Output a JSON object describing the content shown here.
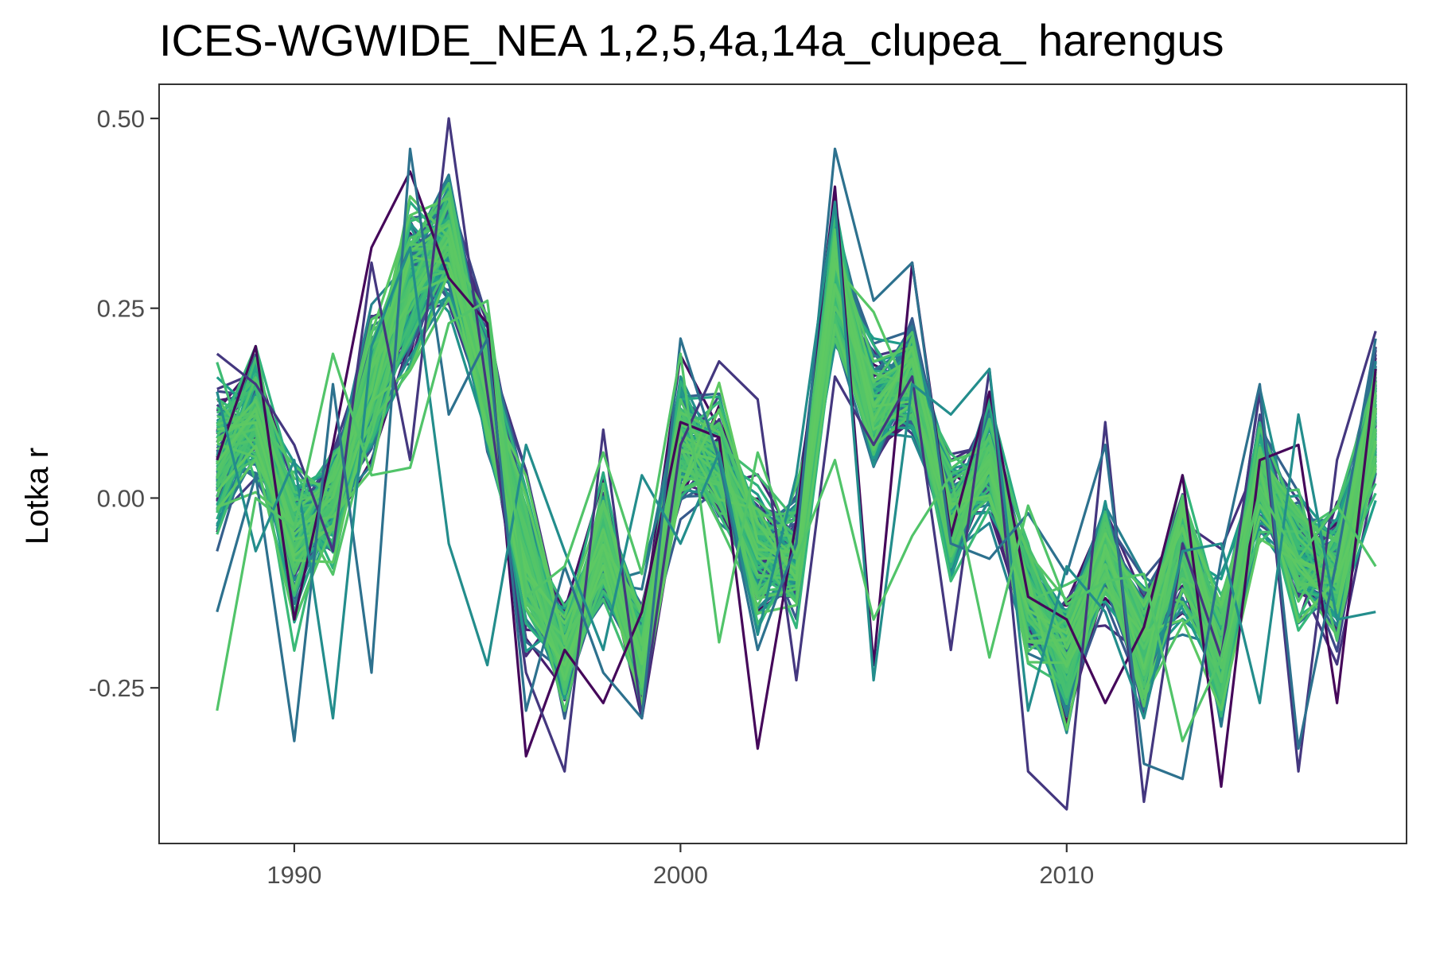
{
  "chart_data": {
    "type": "line",
    "title": "ICES-WGWIDE_NEA 1,2,5,4a,14a_clupea_ harengus",
    "xlabel": "",
    "ylabel": "Lotka r",
    "xlim": [
      1986.5,
      2018.8
    ],
    "ylim": [
      -0.455,
      0.545
    ],
    "x_ticks": [
      1990,
      2000,
      2010
    ],
    "x_tick_labels": [
      "1990",
      "2000",
      "2010"
    ],
    "y_ticks": [
      0.5,
      0.25,
      0.0,
      -0.25
    ],
    "y_tick_labels": [
      "0.50",
      "0.25",
      "0.00",
      "-0.25"
    ],
    "grid": false,
    "legend": "none",
    "palette": [
      "#440154",
      "#482878",
      "#3e4a89",
      "#31688e",
      "#26828e",
      "#1f9e89",
      "#35b779",
      "#4ac16d",
      "#5ec962"
    ],
    "ensemble_size": 150,
    "x": [
      1988,
      1989,
      1990,
      1991,
      1992,
      1993,
      1994,
      1995,
      1996,
      1997,
      1998,
      1999,
      2000,
      2001,
      2002,
      2003,
      2004,
      2005,
      2006,
      2007,
      2008,
      2009,
      2010,
      2011,
      2012,
      2013,
      2014,
      2015,
      2016,
      2017,
      2018
    ],
    "central_y": [
      0.05,
      0.11,
      -0.05,
      0.0,
      0.14,
      0.28,
      0.34,
      0.14,
      -0.07,
      -0.21,
      -0.06,
      -0.2,
      0.07,
      0.05,
      -0.07,
      -0.08,
      0.29,
      0.12,
      0.16,
      -0.03,
      0.05,
      -0.13,
      -0.21,
      -0.07,
      -0.2,
      -0.07,
      -0.2,
      0.03,
      -0.08,
      -0.1,
      0.1
    ],
    "spread": [
      0.08,
      0.07,
      0.08,
      0.06,
      0.08,
      0.08,
      0.07,
      0.07,
      0.08,
      0.06,
      0.06,
      0.06,
      0.07,
      0.06,
      0.07,
      0.06,
      0.07,
      0.07,
      0.06,
      0.06,
      0.06,
      0.06,
      0.06,
      0.06,
      0.07,
      0.07,
      0.07,
      0.06,
      0.06,
      0.07,
      0.07
    ],
    "min_y": [
      -0.28,
      -0.16,
      -0.32,
      -0.29,
      -0.23,
      -0.1,
      -0.06,
      -0.22,
      -0.34,
      -0.36,
      -0.27,
      -0.29,
      -0.29,
      -0.23,
      -0.33,
      -0.24,
      0.05,
      -0.24,
      -0.05,
      -0.2,
      -0.21,
      -0.36,
      -0.41,
      -0.28,
      -0.4,
      -0.37,
      -0.38,
      -0.27,
      -0.36,
      -0.27,
      -0.16
    ],
    "max_y": [
      0.19,
      0.2,
      0.07,
      0.19,
      0.33,
      0.46,
      0.5,
      0.26,
      0.07,
      -0.07,
      0.09,
      0.03,
      0.21,
      0.18,
      0.13,
      0.03,
      0.46,
      0.26,
      0.31,
      0.11,
      0.17,
      -0.02,
      -0.09,
      0.1,
      -0.07,
      0.03,
      -0.06,
      0.15,
      0.11,
      0.05,
      0.22
    ],
    "series": [
      {
        "y": [
          0.05,
          0.2,
          -0.16,
          0.07,
          0.33,
          0.43,
          0.29,
          0.23,
          -0.34,
          -0.2,
          -0.27,
          -0.15,
          0.1,
          0.08,
          -0.33,
          -0.03,
          0.41,
          -0.22,
          0.31,
          -0.05,
          0.14,
          -0.13,
          -0.16,
          -0.27,
          -0.17,
          0.03,
          -0.38,
          0.05,
          0.07,
          -0.27,
          0.17
        ]
      },
      {
        "y": [
          0.19,
          0.15,
          0.07,
          -0.07,
          0.31,
          0.05,
          0.5,
          0.14,
          -0.23,
          -0.36,
          0.09,
          -0.29,
          0.07,
          0.18,
          0.13,
          -0.24,
          0.16,
          0.07,
          0.16,
          -0.2,
          0.17,
          -0.36,
          -0.41,
          0.1,
          -0.4,
          -0.06,
          -0.21,
          0.14,
          -0.36,
          0.05,
          0.22
        ]
      },
      {
        "y": [
          -0.15,
          0.03,
          -0.32,
          0.15,
          -0.23,
          0.46,
          0.11,
          0.21,
          -0.28,
          -0.09,
          -0.23,
          -0.29,
          0.21,
          0.05,
          -0.2,
          -0.06,
          0.46,
          0.26,
          0.31,
          -0.06,
          -0.08,
          -0.02,
          -0.1,
          0.07,
          -0.35,
          -0.37,
          -0.08,
          0.15,
          -0.33,
          -0.08,
          0.21
        ]
      },
      {
        "y": [
          0.14,
          -0.07,
          0.05,
          -0.29,
          0.2,
          0.33,
          -0.06,
          -0.22,
          0.07,
          -0.07,
          -0.2,
          0.03,
          -0.06,
          0.06,
          -0.18,
          0.03,
          0.39,
          -0.24,
          0.15,
          0.11,
          0.17,
          -0.28,
          -0.09,
          -0.15,
          -0.29,
          -0.07,
          -0.06,
          -0.27,
          0.11,
          -0.16,
          -0.15
        ]
      },
      {
        "y": [
          -0.28,
          0.0,
          -0.04,
          0.19,
          0.03,
          0.04,
          0.23,
          0.26,
          -0.13,
          -0.09,
          0.06,
          -0.1,
          0.19,
          -0.19,
          0.06,
          -0.08,
          0.05,
          -0.16,
          -0.05,
          0.03,
          -0.21,
          -0.01,
          -0.14,
          -0.11,
          -0.1,
          -0.32,
          -0.21,
          0.01,
          -0.08,
          -0.01,
          -0.09
        ]
      }
    ]
  }
}
